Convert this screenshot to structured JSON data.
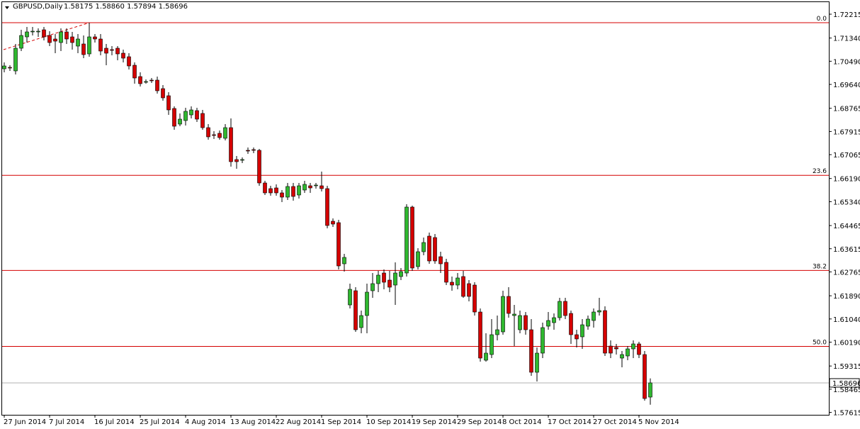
{
  "chart_data": {
    "type": "candlestick",
    "title": "GBPUSD,Daily",
    "quote_text": "1.58175 1.58860 1.57894 1.58696",
    "up_color": "#2fb82f",
    "down_color": "#d40000",
    "fib_color": "#d40000",
    "ylim": [
      1.57525,
      1.72683
    ],
    "yticks": [
      1.72215,
      {
        "value": 1.7134,
        "label": "1.71340"
      },
      {
        "value": 1.7049,
        "label": "1.70490"
      },
      {
        "value": 1.6964,
        "label": "1.69640"
      },
      1.68765,
      1.67915,
      1.67065,
      {
        "value": 1.6619,
        "label": "1.66190"
      },
      {
        "value": 1.6534,
        "label": "1.65340"
      },
      1.64465,
      1.63615,
      1.62765,
      {
        "value": 1.6189,
        "label": "1.61890"
      },
      {
        "value": 1.6104,
        "label": "1.61040"
      },
      {
        "value": 1.6019,
        "label": "1.60190"
      },
      1.59315,
      1.58465,
      1.57615
    ],
    "last_price": 1.58696,
    "fib_levels": [
      {
        "price": 1.71903,
        "label": "0.0"
      },
      {
        "price": 1.66307,
        "label": "23.6"
      },
      {
        "price": 1.62819,
        "label": "38.2"
      },
      {
        "price": 1.60034,
        "label": "50.0"
      }
    ],
    "categories": [
      "27 Jun 2014",
      null,
      null,
      null,
      null,
      null,
      null,
      null,
      "7 Jul 2014",
      null,
      null,
      null,
      null,
      null,
      null,
      null,
      "16 Jul 2014",
      null,
      null,
      null,
      null,
      null,
      null,
      null,
      "25 Jul 2014",
      null,
      null,
      null,
      null,
      null,
      null,
      null,
      "4 Aug 2014",
      null,
      null,
      null,
      null,
      null,
      null,
      null,
      "13 Aug 2014",
      null,
      null,
      null,
      null,
      null,
      null,
      null,
      "22 Aug 2014",
      null,
      null,
      null,
      null,
      null,
      null,
      null,
      "1 Sep 2014",
      null,
      null,
      null,
      null,
      null,
      null,
      null,
      "10 Sep 2014",
      null,
      null,
      null,
      null,
      null,
      null,
      null,
      "19 Sep 2014",
      null,
      null,
      null,
      null,
      null,
      null,
      null,
      "29 Sep 2014",
      null,
      null,
      null,
      null,
      null,
      null,
      null,
      "8 Oct 2014",
      null,
      null,
      null,
      null,
      null,
      null,
      null,
      "17 Oct 2014",
      null,
      null,
      null,
      null,
      null,
      null,
      null,
      "27 Oct 2014",
      null,
      null,
      null,
      null,
      null,
      null,
      null,
      "5 Nov 2014",
      null,
      null
    ],
    "open": [
      1.70213,
      1.70265,
      1.70135,
      1.70967,
      1.71383,
      1.71565,
      1.71565,
      1.71643,
      1.71435,
      1.71305,
      1.71175,
      1.71565,
      1.71383,
      1.71045,
      1.71123,
      1.70759,
      1.71383,
      1.71305,
      1.70967,
      1.70915,
      1.70967,
      1.70785,
      1.70655,
      1.70343,
      1.69927,
      1.69719,
      1.69797,
      1.69797,
      1.69485,
      1.69225,
      1.68757,
      1.68185,
      1.68315,
      1.68523,
      1.68679,
      1.68575,
      1.68055,
      1.67795,
      1.67847,
      1.67665,
      1.68055,
      1.66885,
      1.66859,
      1.67223,
      1.67249,
      1.67223,
      1.66027,
      1.65819,
      1.65845,
      1.65663,
      1.65507,
      1.65897,
      1.65585,
      1.65767,
      1.65923,
      1.65923,
      1.65923,
      1.65819,
      1.64623,
      1.64571,
      1.63063,
      1.61555,
      1.62075,
      1.60723,
      1.61165,
      1.62075,
      1.62335,
      1.62725,
      1.62465,
      1.62283,
      1.62595,
      1.62725,
      1.65143,
      1.62959,
      1.63505,
      1.64077,
      1.64025,
      1.63323,
      1.63115,
      1.62387,
      1.62283,
      1.62595,
      1.62335,
      1.62283,
      1.61295,
      1.59527,
      1.59735,
      1.60463,
      1.60567,
      1.61867,
      1.61165,
      1.60645,
      1.61165,
      1.60645,
      1.59085,
      1.59787,
      1.60775,
      1.60905,
      1.61087,
      1.61685,
      1.61243,
      1.60463,
      1.60385,
      1.60775,
      1.60983,
      1.61295,
      1.61347,
      1.60047,
      1.59995,
      1.59605,
      1.59683,
      1.59943,
      1.60125,
      1.59735,
      1.58175
    ],
    "high": [
      1.70447,
      1.70343,
      1.71123,
      1.71643,
      1.71747,
      1.71747,
      1.71695,
      1.71747,
      1.71591,
      1.71487,
      1.71695,
      1.71695,
      1.71565,
      1.71487,
      1.71435,
      1.71903,
      1.71487,
      1.71487,
      1.71123,
      1.71045,
      1.71045,
      1.70915,
      1.70785,
      1.70447,
      1.70083,
      1.69823,
      1.69875,
      1.69927,
      1.69615,
      1.69355,
      1.68835,
      1.68575,
      1.68783,
      1.68835,
      1.68783,
      1.68705,
      1.68185,
      1.67925,
      1.67951,
      1.68185,
      1.68393,
      1.67015,
      1.66963,
      1.67327,
      1.67327,
      1.67275,
      1.66105,
      1.65923,
      1.65975,
      1.65767,
      1.66027,
      1.66027,
      1.66027,
      1.66105,
      1.66027,
      1.66027,
      1.66443,
      1.65923,
      1.64727,
      1.64675,
      1.63427,
      1.62335,
      1.62205,
      1.61347,
      1.62335,
      1.62725,
      1.62803,
      1.62855,
      1.62803,
      1.63115,
      1.62907,
      1.65247,
      1.65195,
      1.63635,
      1.64025,
      1.64207,
      1.64155,
      1.63505,
      1.63245,
      1.62595,
      1.62725,
      1.62803,
      1.62465,
      1.62387,
      1.61425,
      1.60515,
      1.61035,
      1.61165,
      1.62075,
      1.62205,
      1.61555,
      1.61347,
      1.61295,
      1.61035,
      1.59995,
      1.60905,
      1.61295,
      1.61243,
      1.61815,
      1.61815,
      1.61347,
      1.60645,
      1.61035,
      1.61165,
      1.61425,
      1.61815,
      1.61503,
      1.60255,
      1.60125,
      1.59865,
      1.60047,
      1.60255,
      1.60203,
      1.59865,
      1.5886
    ],
    "low": [
      1.70083,
      1.70135,
      1.70005,
      1.70863,
      1.71175,
      1.71435,
      1.71383,
      1.71253,
      1.71045,
      1.70785,
      1.70863,
      1.71123,
      1.70915,
      1.70785,
      1.70603,
      1.70655,
      1.71175,
      1.70707,
      1.70343,
      1.70707,
      1.70525,
      1.70447,
      1.70187,
      1.69667,
      1.69563,
      1.69667,
      1.69693,
      1.69303,
      1.69043,
      1.68523,
      1.67977,
      1.68107,
      1.68133,
      1.68393,
      1.68263,
      1.67977,
      1.67613,
      1.67639,
      1.67613,
      1.67587,
      1.66625,
      1.66547,
      1.66755,
      1.67093,
      1.67119,
      1.65923,
      1.65585,
      1.65559,
      1.65559,
      1.65325,
      1.65403,
      1.65377,
      1.65455,
      1.65663,
      1.65663,
      1.65819,
      1.65715,
      1.64363,
      1.64415,
      1.62855,
      1.62777,
      1.61425,
      1.60567,
      1.60515,
      1.60515,
      1.61815,
      1.62023,
      1.62127,
      1.62023,
      1.61555,
      1.62465,
      1.62595,
      1.62803,
      1.62855,
      1.63375,
      1.63063,
      1.63063,
      1.62725,
      1.62283,
      1.62075,
      1.62127,
      1.61815,
      1.61685,
      1.61165,
      1.59475,
      1.59475,
      1.59605,
      1.60255,
      1.60463,
      1.61087,
      1.60047,
      1.60515,
      1.60463,
      1.58955,
      1.58747,
      1.59605,
      1.60645,
      1.60645,
      1.60983,
      1.61035,
      1.60125,
      1.59995,
      1.59943,
      1.60645,
      1.60723,
      1.61165,
      1.59683,
      1.59605,
      1.59735,
      1.59267,
      1.59527,
      1.59605,
      1.59605,
      1.58045,
      1.57894
    ],
    "close": [
      1.70317,
      1.70239,
      1.70967,
      1.71435,
      1.71565,
      1.71591,
      1.71591,
      1.71383,
      1.71175,
      1.71227,
      1.71565,
      1.71305,
      1.71175,
      1.71305,
      1.70733,
      1.71383,
      1.71305,
      1.70863,
      1.70785,
      1.70889,
      1.70759,
      1.70603,
      1.70317,
      1.69875,
      1.69667,
      1.69745,
      1.69771,
      1.69407,
      1.69147,
      1.68705,
      1.68107,
      1.68367,
      1.68653,
      1.68705,
      1.68367,
      1.68055,
      1.67717,
      1.67769,
      1.67691,
      1.68055,
      1.66807,
      1.66807,
      1.66885,
      1.67197,
      1.67223,
      1.66027,
      1.65663,
      1.65663,
      1.65663,
      1.65507,
      1.65897,
      1.65533,
      1.65923,
      1.65975,
      1.65845,
      1.65949,
      1.65819,
      1.64467,
      1.64519,
      1.62985,
      1.63297,
      1.62127,
      1.60645,
      1.61165,
      1.62023,
      1.62335,
      1.62647,
      1.62387,
      1.62205,
      1.62725,
      1.62777,
      1.65143,
      1.62907,
      1.63505,
      1.63843,
      1.63167,
      1.63167,
      1.63063,
      1.62387,
      1.62283,
      1.62543,
      1.61867,
      1.61867,
      1.61295,
      1.59605,
      1.59787,
      1.60463,
      1.60645,
      1.61867,
      1.61243,
      1.61217,
      1.61165,
      1.60645,
      1.59085,
      1.59787,
      1.60723,
      1.60983,
      1.61087,
      1.61685,
      1.61165,
      1.60463,
      1.60307,
      1.60827,
      1.61035,
      1.61295,
      1.61347,
      1.59787,
      1.59787,
      1.59943,
      1.59735,
      1.59943,
      1.60125,
      1.59735,
      1.58123,
      1.58696
    ]
  }
}
